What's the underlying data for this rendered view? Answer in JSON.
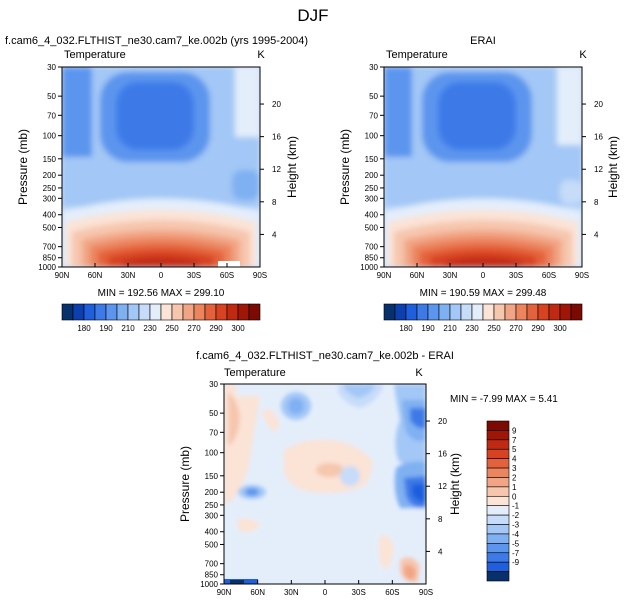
{
  "page_title": "DJF",
  "panels": {
    "model": {
      "title": "f.cam6_4_032.FLTHIST_ne30.cam7_ke.002b (yrs 1995-2004)",
      "left_label": "Temperature",
      "right_label": "K",
      "minmax": "MIN = 192.56  MAX = 299.10"
    },
    "obs": {
      "title": "ERAI",
      "left_label": "Temperature",
      "right_label": "K",
      "minmax": "MIN = 190.59  MAX = 299.48"
    },
    "diff": {
      "title": "f.cam6_4_032.FLTHIST_ne30.cam7_ke.002b - ERAI",
      "left_label": "Temperature",
      "right_label": "K",
      "minmax": "MIN =  -7.99  MAX =   5.41"
    }
  },
  "axes": {
    "ylabel": "Pressure (mb)",
    "y2label": "Height (km)",
    "pressure_ticks": [
      "30",
      "50",
      "70",
      "100",
      "150",
      "200",
      "250",
      "300",
      "400",
      "500",
      "700",
      "850",
      "1000"
    ],
    "pressure_values": [
      30,
      50,
      70,
      100,
      150,
      200,
      250,
      300,
      400,
      500,
      700,
      850,
      1000
    ],
    "height_ticks": [
      "20",
      "16",
      "12",
      "8",
      "4"
    ],
    "height_values": [
      20,
      16,
      12,
      8,
      4
    ],
    "lat_ticks": [
      "90N",
      "60N",
      "30N",
      "0",
      "30S",
      "60S",
      "90S"
    ],
    "lat_values": [
      90,
      60,
      30,
      0,
      -30,
      -60,
      -90
    ]
  },
  "colorbar_abs": {
    "labels": [
      "180",
      "190",
      "210",
      "230",
      "250",
      "270",
      "290",
      "300"
    ],
    "colors": [
      "#08306b",
      "#0c3fb0",
      "#1f5fde",
      "#3d7ae8",
      "#5c95ee",
      "#7fb0f2",
      "#a3c7f6",
      "#c6dcf9",
      "#e4eefb",
      "#fbe3d6",
      "#f6c6ad",
      "#f2a584",
      "#ec845e",
      "#e4623b",
      "#d74221",
      "#c12a12",
      "#a01606",
      "#7a0a02"
    ]
  },
  "colorbar_diff": {
    "labels": [
      "9",
      "7",
      "5",
      "4",
      "3",
      "2",
      "1",
      "0",
      "-1",
      "-2",
      "-3",
      "-4",
      "-5",
      "-7",
      "-9"
    ],
    "colors": [
      "#7a0a02",
      "#a01606",
      "#c12a12",
      "#d74221",
      "#e4623b",
      "#ec845e",
      "#f2a584",
      "#f6c6ad",
      "#fbe3d6",
      "#e4eefb",
      "#c6dcf9",
      "#a3c7f6",
      "#7fb0f2",
      "#5c95ee",
      "#3d7ae8",
      "#1f5fde",
      "#08306b"
    ]
  },
  "chart_data": [
    {
      "type": "heatmap",
      "title": "f.cam6_4_032.FLTHIST_ne30.cam7_ke.002b (yrs 1995-2004)",
      "variable": "Temperature",
      "units": "K",
      "xlabel": "",
      "ylabel": "Pressure (mb)",
      "y2label": "Height (km)",
      "x_ticks": [
        "90N",
        "60N",
        "30N",
        "0",
        "30S",
        "60S",
        "90S"
      ],
      "y_ticks": [
        30,
        50,
        70,
        100,
        150,
        200,
        250,
        300,
        400,
        500,
        700,
        850,
        1000
      ],
      "y_scale": "log",
      "min": 192.56,
      "max": 299.1,
      "colorbar_levels": [
        180,
        190,
        210,
        230,
        250,
        270,
        290,
        300
      ]
    },
    {
      "type": "heatmap",
      "title": "ERAI",
      "variable": "Temperature",
      "units": "K",
      "xlabel": "",
      "ylabel": "Pressure (mb)",
      "y2label": "Height (km)",
      "x_ticks": [
        "90N",
        "60N",
        "30N",
        "0",
        "30S",
        "60S",
        "90S"
      ],
      "y_ticks": [
        30,
        50,
        70,
        100,
        150,
        200,
        250,
        300,
        400,
        500,
        700,
        850,
        1000
      ],
      "y_scale": "log",
      "min": 190.59,
      "max": 299.48,
      "colorbar_levels": [
        180,
        190,
        210,
        230,
        250,
        270,
        290,
        300
      ]
    },
    {
      "type": "heatmap",
      "title": "f.cam6_4_032.FLTHIST_ne30.cam7_ke.002b - ERAI",
      "variable": "Temperature",
      "units": "K",
      "xlabel": "",
      "ylabel": "Pressure (mb)",
      "y2label": "Height (km)",
      "x_ticks": [
        "90N",
        "60N",
        "30N",
        "0",
        "30S",
        "60S",
        "90S"
      ],
      "y_ticks": [
        30,
        50,
        70,
        100,
        150,
        200,
        250,
        300,
        400,
        500,
        700,
        850,
        1000
      ],
      "y_scale": "log",
      "min": -7.99,
      "max": 5.41,
      "colorbar_levels": [
        9,
        7,
        5,
        4,
        3,
        2,
        1,
        0,
        -1,
        -2,
        -3,
        -4,
        -5,
        -7,
        -9
      ]
    }
  ]
}
